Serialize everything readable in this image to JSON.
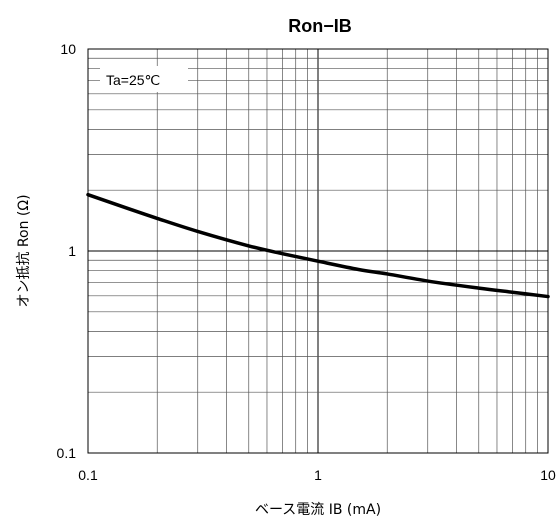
{
  "chart_data": {
    "type": "line",
    "title": "Ron−IB",
    "xlabel": "ベース電流 IB (mA)",
    "ylabel": "オン抵抗 Ron (Ω)",
    "xscale": "log",
    "yscale": "log",
    "xlim": [
      0.1,
      10
    ],
    "ylim": [
      0.1,
      10
    ],
    "grid": true,
    "x_ticks": [
      {
        "value": 0.1,
        "label": "0.1"
      },
      {
        "value": 1,
        "label": "1"
      },
      {
        "value": 10,
        "label": "10"
      }
    ],
    "y_ticks": [
      {
        "value": 0.1,
        "label": "0.1"
      },
      {
        "value": 1,
        "label": "1"
      },
      {
        "value": 10,
        "label": "10"
      }
    ],
    "annotation": "Ta=25℃",
    "series": [
      {
        "x": [
          0.1,
          0.15,
          0.2,
          0.3,
          0.5,
          0.7,
          1,
          1.5,
          2,
          3,
          5,
          7,
          10
        ],
        "y": [
          1.9,
          1.62,
          1.45,
          1.25,
          1.06,
          0.97,
          0.89,
          0.81,
          0.77,
          0.71,
          0.655,
          0.625,
          0.595
        ],
        "color": "#000000"
      }
    ]
  }
}
